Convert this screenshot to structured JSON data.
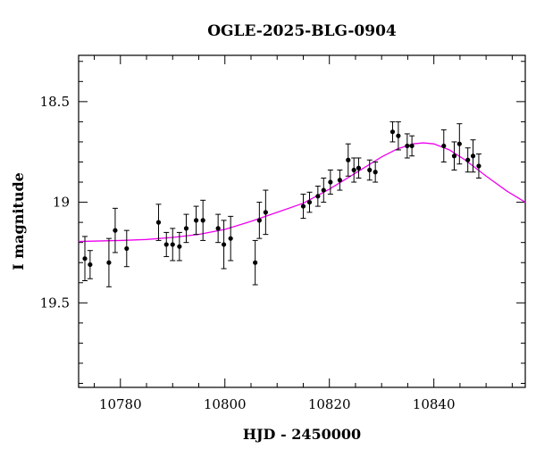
{
  "chart_data": {
    "type": "scatter",
    "title": "OGLE-2025-BLG-0904",
    "xlabel": "HJD - 2450000",
    "ylabel": "I magnitude",
    "xlim": [
      10772,
      10857.5
    ],
    "ylim": [
      19.92,
      18.27
    ],
    "y_inverted": true,
    "x_ticks": [
      10780,
      10800,
      10820,
      10840
    ],
    "x_tick_labels": [
      "10780",
      "10800",
      "10820",
      "10840"
    ],
    "y_ticks": [
      18.5,
      19,
      19.5
    ],
    "y_tick_labels": [
      "18.5",
      "19",
      "19.5"
    ],
    "grid": false,
    "series": [
      {
        "kind": "points_with_errorbars",
        "color": "#000000",
        "points": [
          {
            "x": 10773.2,
            "y": 19.28,
            "err": 0.11
          },
          {
            "x": 10774.2,
            "y": 19.31,
            "err": 0.07
          },
          {
            "x": 10777.8,
            "y": 19.3,
            "err": 0.12
          },
          {
            "x": 10779.0,
            "y": 19.14,
            "err": 0.11
          },
          {
            "x": 10781.2,
            "y": 19.23,
            "err": 0.09
          },
          {
            "x": 10787.3,
            "y": 19.1,
            "err": 0.09
          },
          {
            "x": 10788.8,
            "y": 19.21,
            "err": 0.06
          },
          {
            "x": 10790.0,
            "y": 19.21,
            "err": 0.08
          },
          {
            "x": 10791.3,
            "y": 19.22,
            "err": 0.07
          },
          {
            "x": 10792.6,
            "y": 19.13,
            "err": 0.07
          },
          {
            "x": 10794.5,
            "y": 19.09,
            "err": 0.07
          },
          {
            "x": 10795.8,
            "y": 19.09,
            "err": 0.1
          },
          {
            "x": 10798.7,
            "y": 19.13,
            "err": 0.07
          },
          {
            "x": 10799.8,
            "y": 19.21,
            "err": 0.12
          },
          {
            "x": 10801.1,
            "y": 19.18,
            "err": 0.11
          },
          {
            "x": 10805.8,
            "y": 19.3,
            "err": 0.11
          },
          {
            "x": 10806.6,
            "y": 19.09,
            "err": 0.09
          },
          {
            "x": 10807.8,
            "y": 19.05,
            "err": 0.11
          },
          {
            "x": 10815.0,
            "y": 19.02,
            "err": 0.06
          },
          {
            "x": 10816.2,
            "y": 19.0,
            "err": 0.05
          },
          {
            "x": 10817.8,
            "y": 18.97,
            "err": 0.05
          },
          {
            "x": 10818.9,
            "y": 18.94,
            "err": 0.06
          },
          {
            "x": 10820.2,
            "y": 18.9,
            "err": 0.06
          },
          {
            "x": 10822.0,
            "y": 18.89,
            "err": 0.05
          },
          {
            "x": 10823.6,
            "y": 18.79,
            "err": 0.08
          },
          {
            "x": 10824.7,
            "y": 18.84,
            "err": 0.06
          },
          {
            "x": 10825.6,
            "y": 18.83,
            "err": 0.05
          },
          {
            "x": 10827.7,
            "y": 18.84,
            "err": 0.05
          },
          {
            "x": 10828.8,
            "y": 18.85,
            "err": 0.05
          },
          {
            "x": 10832.1,
            "y": 18.65,
            "err": 0.05
          },
          {
            "x": 10833.2,
            "y": 18.67,
            "err": 0.07
          },
          {
            "x": 10834.9,
            "y": 18.72,
            "err": 0.06
          },
          {
            "x": 10835.8,
            "y": 18.72,
            "err": 0.05
          },
          {
            "x": 10841.9,
            "y": 18.72,
            "err": 0.08
          },
          {
            "x": 10843.9,
            "y": 18.77,
            "err": 0.07
          },
          {
            "x": 10844.9,
            "y": 18.71,
            "err": 0.1
          },
          {
            "x": 10846.5,
            "y": 18.79,
            "err": 0.06
          },
          {
            "x": 10847.5,
            "y": 18.77,
            "err": 0.08
          },
          {
            "x": 10848.6,
            "y": 18.82,
            "err": 0.06
          }
        ]
      },
      {
        "kind": "model_curve",
        "color": "#ee00ee",
        "points": [
          {
            "x": 10772,
            "y": 19.195
          },
          {
            "x": 10780,
            "y": 19.19
          },
          {
            "x": 10785,
            "y": 19.185
          },
          {
            "x": 10790,
            "y": 19.175
          },
          {
            "x": 10795,
            "y": 19.16
          },
          {
            "x": 10800,
            "y": 19.135
          },
          {
            "x": 10805,
            "y": 19.095
          },
          {
            "x": 10810,
            "y": 19.05
          },
          {
            "x": 10815,
            "y": 19.005
          },
          {
            "x": 10820,
            "y": 18.935
          },
          {
            "x": 10825,
            "y": 18.855
          },
          {
            "x": 10830,
            "y": 18.775
          },
          {
            "x": 10833,
            "y": 18.735
          },
          {
            "x": 10836,
            "y": 18.71
          },
          {
            "x": 10838,
            "y": 18.705
          },
          {
            "x": 10840,
            "y": 18.71
          },
          {
            "x": 10843,
            "y": 18.74
          },
          {
            "x": 10846,
            "y": 18.79
          },
          {
            "x": 10850,
            "y": 18.87
          },
          {
            "x": 10854,
            "y": 18.945
          },
          {
            "x": 10857.5,
            "y": 19.0
          }
        ]
      }
    ]
  }
}
